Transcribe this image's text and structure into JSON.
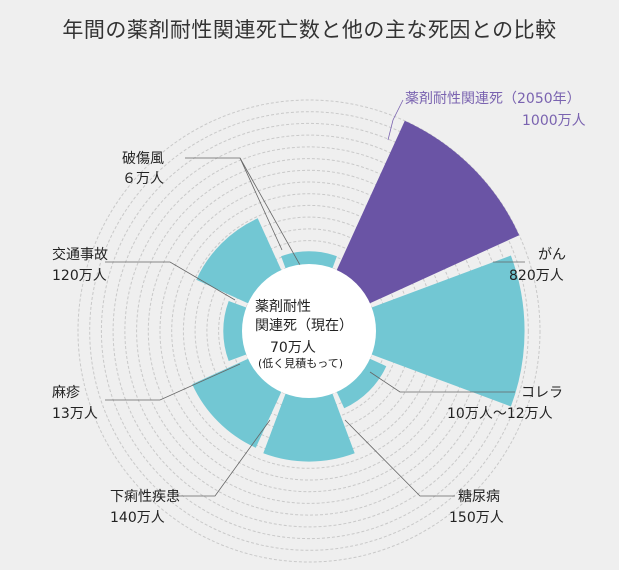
{
  "title": "年間の薬剤耐性関連死亡数と他の主な死因との比較",
  "chart_data": {
    "type": "polar-area",
    "center_label": {
      "line1": "薬剤耐性",
      "line2": "関連死（現在）",
      "value": "70万人",
      "note": "(低く見積もって)"
    },
    "categories": [
      {
        "name": "破傷風",
        "value_label": "６万人",
        "value": 6
      },
      {
        "name": "薬剤耐性関連死（2050年）",
        "value_label": "1000万人",
        "value": 1000,
        "highlight": true
      },
      {
        "name": "がん",
        "value_label": "820万人",
        "value": 820
      },
      {
        "name": "コレラ",
        "value_label": "10万人～12万人",
        "value": 12
      },
      {
        "name": "糖尿病",
        "value_label": "150万人",
        "value": 150
      },
      {
        "name": "下痢性疾患",
        "value_label": "140万人",
        "value": 140
      },
      {
        "name": "麻疹",
        "value_label": "13万人",
        "value": 13
      },
      {
        "name": "交通事故",
        "value_label": "120万人",
        "value": 120
      }
    ],
    "colors": {
      "highlight": "#6a54a5",
      "normal": "#72c7d3",
      "grid": "#c9c9c9",
      "center": "#ffffff"
    }
  }
}
